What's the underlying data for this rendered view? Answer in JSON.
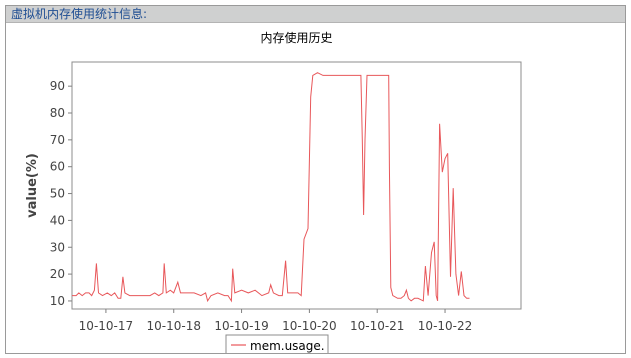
{
  "panel": {
    "title": "虚拟机内存使用统计信息:"
  },
  "chart_data": {
    "type": "line",
    "title": "内存使用历史",
    "xlabel": "",
    "ylabel": "value(%)",
    "ylim": [
      7,
      99
    ],
    "yticks": [
      10,
      20,
      30,
      40,
      50,
      60,
      70,
      80,
      90
    ],
    "xlim": [
      0,
      6.62
    ],
    "xticks": [
      {
        "x": 0.5,
        "label": "10-10-17"
      },
      {
        "x": 1.5,
        "label": "10-10-18"
      },
      {
        "x": 2.5,
        "label": "10-10-19"
      },
      {
        "x": 3.5,
        "label": "10-10-20"
      },
      {
        "x": 4.5,
        "label": "10-10-21"
      },
      {
        "x": 5.5,
        "label": "10-10-22"
      }
    ],
    "grid": false,
    "legend_position": "bottom-center",
    "series": [
      {
        "name": "mem.usage.",
        "color": "#e8575a",
        "points": [
          [
            0.0,
            12
          ],
          [
            0.06,
            12
          ],
          [
            0.1,
            13
          ],
          [
            0.15,
            12
          ],
          [
            0.2,
            13
          ],
          [
            0.25,
            13
          ],
          [
            0.29,
            12
          ],
          [
            0.33,
            14
          ],
          [
            0.36,
            24
          ],
          [
            0.39,
            13
          ],
          [
            0.45,
            12
          ],
          [
            0.52,
            13
          ],
          [
            0.58,
            12
          ],
          [
            0.63,
            13
          ],
          [
            0.68,
            11
          ],
          [
            0.72,
            11
          ],
          [
            0.75,
            19
          ],
          [
            0.78,
            13
          ],
          [
            0.85,
            12
          ],
          [
            0.92,
            12
          ],
          [
            1.0,
            12
          ],
          [
            1.08,
            12
          ],
          [
            1.15,
            12
          ],
          [
            1.22,
            13
          ],
          [
            1.28,
            12
          ],
          [
            1.34,
            13
          ],
          [
            1.36,
            24
          ],
          [
            1.39,
            13
          ],
          [
            1.45,
            14
          ],
          [
            1.5,
            13
          ],
          [
            1.56,
            17
          ],
          [
            1.6,
            13
          ],
          [
            1.7,
            13
          ],
          [
            1.8,
            13
          ],
          [
            1.9,
            12
          ],
          [
            1.97,
            13
          ],
          [
            2.0,
            10
          ],
          [
            2.05,
            12
          ],
          [
            2.15,
            13
          ],
          [
            2.25,
            12
          ],
          [
            2.3,
            12
          ],
          [
            2.35,
            10
          ],
          [
            2.37,
            22
          ],
          [
            2.4,
            13
          ],
          [
            2.5,
            14
          ],
          [
            2.6,
            13
          ],
          [
            2.7,
            14
          ],
          [
            2.8,
            12
          ],
          [
            2.9,
            13
          ],
          [
            2.93,
            16
          ],
          [
            2.97,
            13
          ],
          [
            3.05,
            12
          ],
          [
            3.1,
            12
          ],
          [
            3.15,
            25
          ],
          [
            3.18,
            13
          ],
          [
            3.25,
            13
          ],
          [
            3.33,
            13
          ],
          [
            3.38,
            12
          ],
          [
            3.42,
            33
          ],
          [
            3.48,
            37
          ],
          [
            3.52,
            86
          ],
          [
            3.55,
            94
          ],
          [
            3.62,
            95
          ],
          [
            3.7,
            94
          ],
          [
            3.8,
            94
          ],
          [
            3.9,
            94
          ],
          [
            4.0,
            94
          ],
          [
            4.1,
            94
          ],
          [
            4.2,
            94
          ],
          [
            4.26,
            94
          ],
          [
            4.28,
            70
          ],
          [
            4.3,
            42
          ],
          [
            4.32,
            70
          ],
          [
            4.35,
            94
          ],
          [
            4.4,
            94
          ],
          [
            4.5,
            94
          ],
          [
            4.6,
            94
          ],
          [
            4.65,
            94
          ],
          [
            4.67,
            94
          ],
          [
            4.68,
            60
          ],
          [
            4.7,
            15
          ],
          [
            4.73,
            12
          ],
          [
            4.8,
            11
          ],
          [
            4.85,
            11
          ],
          [
            4.9,
            12
          ],
          [
            4.93,
            14
          ],
          [
            4.96,
            11
          ],
          [
            5.0,
            10
          ],
          [
            5.05,
            11
          ],
          [
            5.1,
            11
          ],
          [
            5.18,
            10
          ],
          [
            5.21,
            23
          ],
          [
            5.25,
            12
          ],
          [
            5.3,
            28
          ],
          [
            5.34,
            32
          ],
          [
            5.37,
            12
          ],
          [
            5.39,
            10
          ],
          [
            5.42,
            76
          ],
          [
            5.46,
            58
          ],
          [
            5.5,
            63
          ],
          [
            5.54,
            65
          ],
          [
            5.58,
            19
          ],
          [
            5.62,
            52
          ],
          [
            5.66,
            20
          ],
          [
            5.7,
            12
          ],
          [
            5.74,
            21
          ],
          [
            5.78,
            12
          ],
          [
            5.82,
            11
          ],
          [
            5.86,
            11
          ]
        ]
      }
    ]
  }
}
